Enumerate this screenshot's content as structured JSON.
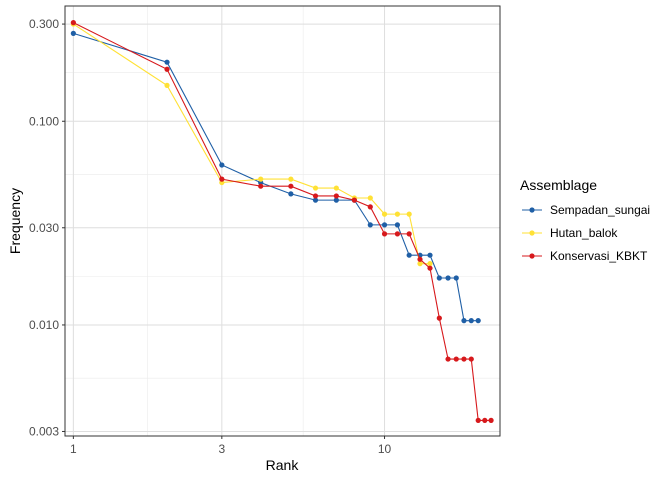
{
  "chart_data": {
    "type": "line",
    "xlabel": "Rank",
    "ylabel": "Frequency",
    "x_scale": "log",
    "y_scale": "log",
    "xlim": [
      0.94,
      23.5
    ],
    "ylim": [
      0.00285,
      0.368
    ],
    "x_major_ticks": [
      1,
      3,
      10
    ],
    "x_major_labels": [
      "1",
      "3",
      "10"
    ],
    "x_minor_ticks": [
      1.732,
      5.477
    ],
    "y_major_ticks": [
      0.003,
      0.01,
      0.03,
      0.1,
      0.3
    ],
    "y_major_labels": [
      "0.003",
      "0.010",
      "0.030",
      "0.100",
      "0.300"
    ],
    "y_minor_ticks": [
      0.00548,
      0.01732,
      0.05477,
      0.1732
    ],
    "grid": true,
    "legend": {
      "title": "Assemblage",
      "position": "right"
    },
    "series": [
      {
        "name": "Sempadan_sungai",
        "color": "#1f5fa6",
        "x": [
          1,
          2,
          3,
          4,
          5,
          6,
          7,
          8,
          9,
          10,
          11,
          12,
          13,
          14,
          15,
          16,
          17,
          18,
          19,
          20
        ],
        "y": [
          0.27,
          0.195,
          0.061,
          0.05,
          0.044,
          0.041,
          0.041,
          0.041,
          0.031,
          0.031,
          0.031,
          0.022,
          0.022,
          0.022,
          0.017,
          0.017,
          0.017,
          0.0105,
          0.0105,
          0.0105
        ]
      },
      {
        "name": "Hutan_balok",
        "color": "#ffe135",
        "x": [
          1,
          2,
          3,
          4,
          5,
          6,
          7,
          8,
          9,
          10,
          11,
          12,
          13,
          14
        ],
        "y": [
          0.3,
          0.15,
          0.05,
          0.052,
          0.052,
          0.047,
          0.047,
          0.042,
          0.042,
          0.035,
          0.035,
          0.035,
          0.02,
          0.02
        ]
      },
      {
        "name": "Konservasi_KBKT",
        "color": "#d7191c",
        "x": [
          1,
          2,
          3,
          4,
          5,
          6,
          7,
          8,
          9,
          10,
          11,
          12,
          13,
          14,
          15,
          16,
          17,
          18,
          19,
          20,
          21,
          22
        ],
        "y": [
          0.305,
          0.18,
          0.052,
          0.048,
          0.048,
          0.043,
          0.043,
          0.041,
          0.038,
          0.028,
          0.028,
          0.028,
          0.021,
          0.019,
          0.0108,
          0.0068,
          0.0068,
          0.0068,
          0.0068,
          0.0034,
          0.0034,
          0.0034
        ]
      }
    ]
  }
}
